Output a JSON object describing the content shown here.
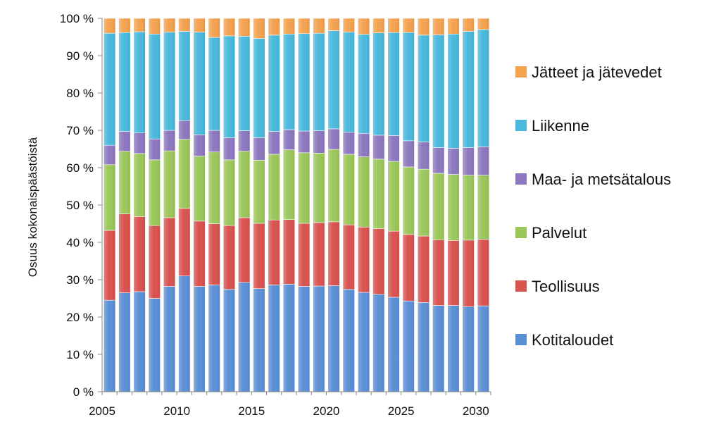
{
  "chart_data": {
    "type": "bar",
    "stacked": true,
    "percent": true,
    "ylabel": "Osuus kokonaispäästöistä",
    "xlabel": "",
    "ylim": [
      0,
      100
    ],
    "y_ticks": [
      "0 %",
      "10 %",
      "20 %",
      "30 %",
      "40 %",
      "50 %",
      "60 %",
      "70 %",
      "80 %",
      "90 %",
      "100 %"
    ],
    "x_tick_labels": [
      "2005",
      "2010",
      "2015",
      "2020",
      "2025",
      "2030"
    ],
    "categories": [
      2005,
      2006,
      2007,
      2008,
      2009,
      2010,
      2011,
      2012,
      2013,
      2014,
      2015,
      2016,
      2017,
      2018,
      2019,
      2020,
      2021,
      2022,
      2023,
      2024,
      2025,
      2026,
      2027,
      2028,
      2029,
      2030
    ],
    "grid": false,
    "legend_position": "right",
    "series": [
      {
        "name": "Kotitaloudet",
        "color": "#5b8fd6",
        "values": [
          24.5,
          26.5,
          26.8,
          25,
          28.2,
          31,
          28.2,
          28.6,
          27.4,
          29.3,
          27.6,
          28.6,
          28.8,
          28.2,
          28.3,
          28.4,
          27.4,
          26.6,
          26.1,
          25.3,
          24.3,
          23.9,
          23.1,
          23.1,
          22.8,
          23
        ]
      },
      {
        "name": "Teollisuus",
        "color": "#d9534f",
        "values": [
          18.7,
          21.1,
          20.1,
          19.5,
          18.4,
          18.1,
          17.5,
          16.4,
          17.1,
          17.3,
          17.5,
          17.4,
          17.3,
          16.9,
          17,
          17.1,
          17.3,
          17.5,
          17.6,
          17.7,
          17.8,
          17.8,
          17.6,
          17.4,
          17.8,
          17.8
        ]
      },
      {
        "name": "Palvelut",
        "color": "#9bc75a",
        "values": [
          17.6,
          16.8,
          16.9,
          17.6,
          17.9,
          18.5,
          17.4,
          19.2,
          17.6,
          17.8,
          16.9,
          17.6,
          18.7,
          18.9,
          18.6,
          19.4,
          18.9,
          18.8,
          18.6,
          18.7,
          18.1,
          17.9,
          17.8,
          17.7,
          17.4,
          17.2
        ]
      },
      {
        "name": "Maa- ja metsätalous",
        "color": "#8d78bf",
        "values": [
          5.2,
          5.3,
          5.5,
          5.6,
          5.5,
          5,
          5.7,
          5.8,
          5.9,
          5.5,
          6,
          6.1,
          5.4,
          5.8,
          6,
          5.5,
          5.9,
          6.3,
          6.4,
          6.9,
          7,
          7.3,
          6.9,
          7,
          7.4,
          7.6
        ]
      },
      {
        "name": "Liikenne",
        "color": "#49b9dd",
        "values": [
          30,
          26.5,
          27.1,
          28.1,
          26.3,
          23.9,
          27.5,
          24.9,
          27.3,
          25.3,
          26.6,
          25.8,
          25.6,
          26.1,
          26.1,
          26.3,
          26.8,
          26.5,
          27.4,
          27.6,
          29,
          28.6,
          30.2,
          30.6,
          31.1,
          31.4
        ]
      },
      {
        "name": "Jätteet ja jätevedet",
        "color": "#f4a24f",
        "values": [
          4,
          3.8,
          3.6,
          4.2,
          3.7,
          3.5,
          3.7,
          5.1,
          4.7,
          4.8,
          5.4,
          4.5,
          4.2,
          4.1,
          4,
          3.3,
          3.7,
          4.3,
          3.9,
          3.8,
          3.8,
          4.5,
          4.4,
          4.2,
          3.5,
          3
        ]
      }
    ]
  }
}
